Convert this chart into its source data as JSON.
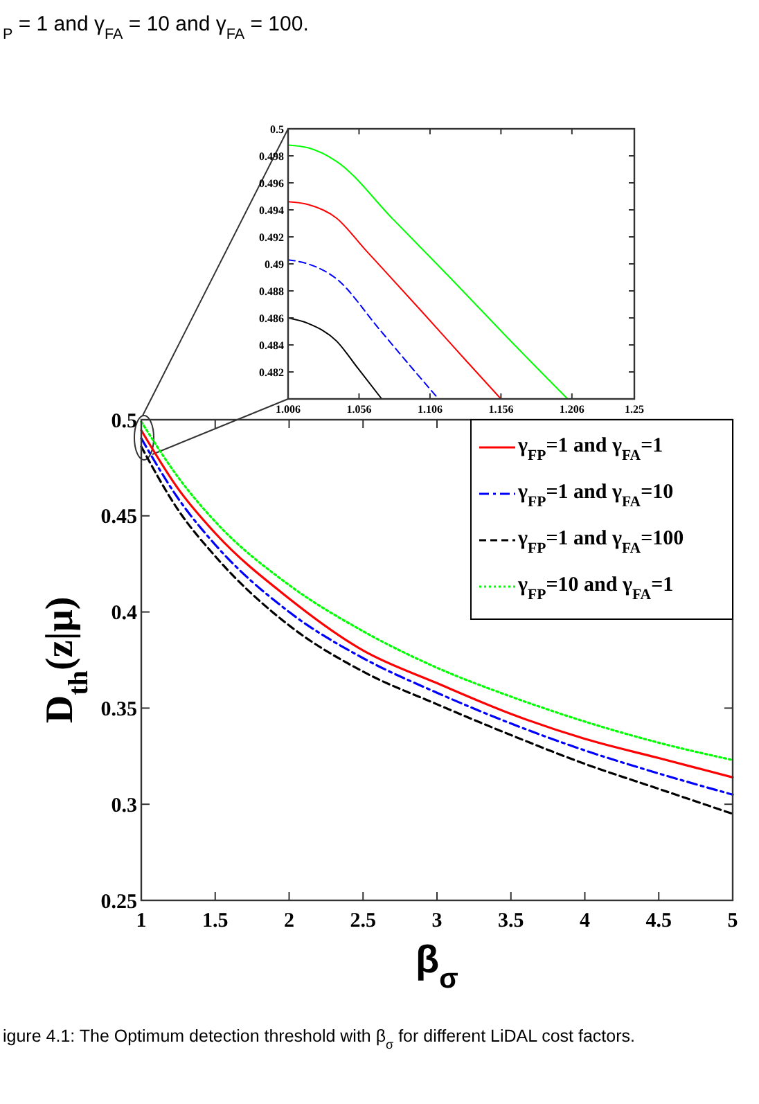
{
  "chart_data": [
    {
      "type": "line",
      "xlim": [
        1.006,
        1.25
      ],
      "xticks": [
        1.006,
        1.056,
        1.106,
        1.156,
        1.206,
        1.25
      ],
      "ylim": [
        0.48,
        0.5
      ],
      "yticks": [
        0.482,
        0.484,
        0.486,
        0.488,
        0.49,
        0.492,
        0.494,
        0.496,
        0.498,
        0.5
      ],
      "grid": false,
      "marker": "none",
      "series": [
        {
          "color": "#00ff00",
          "line_style": "solid",
          "x": [
            1.006,
            1.02,
            1.04,
            1.08,
            1.12,
            1.16,
            1.203
          ],
          "values": [
            0.4988,
            0.4986,
            0.4976,
            0.4933,
            0.489,
            0.4846,
            0.48
          ]
        },
        {
          "color": "#ff0000",
          "line_style": "solid",
          "x": [
            1.006,
            1.02,
            1.04,
            1.06,
            1.1,
            1.13,
            1.156
          ],
          "values": [
            0.4946,
            0.4944,
            0.4934,
            0.4911,
            0.4865,
            0.483,
            0.48
          ]
        },
        {
          "color": "#0000ff",
          "line_style": "dashed",
          "x": [
            1.006,
            1.02,
            1.04,
            1.07,
            1.09,
            1.112
          ],
          "values": [
            0.4903,
            0.49,
            0.4889,
            0.4852,
            0.4827,
            0.48
          ]
        },
        {
          "color": "#000000",
          "line_style": "solid",
          "x": [
            1.006,
            1.02,
            1.04,
            1.055,
            1.072
          ],
          "values": [
            0.486,
            0.4856,
            0.4843,
            0.4823,
            0.48
          ]
        }
      ]
    },
    {
      "type": "line",
      "xlabel": "β$_{σ}$",
      "ylabel": "D$_{th}$(z|μ)",
      "xlim": [
        1,
        5
      ],
      "xticks": [
        1,
        1.5,
        2,
        2.5,
        3,
        3.5,
        4,
        4.5,
        5
      ],
      "ylim": [
        0.25,
        0.5
      ],
      "yticks": [
        0.25,
        0.3,
        0.35,
        0.4,
        0.45,
        0.5
      ],
      "grid": false,
      "marker": "none",
      "legend": "top right",
      "x": [
        1,
        1.25,
        1.5,
        2,
        2.5,
        3,
        3.5,
        4,
        4.5,
        5
      ],
      "series": [
        {
          "name": "γ$_{FP}$=1 and γ$_{FA}$=1",
          "color": "#ff0000",
          "line_style": "solid",
          "values": [
            0.4945,
            0.464,
            0.441,
            0.407,
            0.38,
            0.363,
            0.347,
            0.334,
            0.324,
            0.314
          ]
        },
        {
          "name": "γ$_{FP}$=1 and γ$_{FA}$=10",
          "color": "#0000ff",
          "line_style": "dashdot",
          "values": [
            0.4903,
            0.459,
            0.435,
            0.4,
            0.376,
            0.358,
            0.342,
            0.328,
            0.316,
            0.305
          ]
        },
        {
          "name": "γ$_{FP}$=1 and γ$_{FA}$=100",
          "color": "#000000",
          "line_style": "dashed",
          "values": [
            0.486,
            0.453,
            0.429,
            0.393,
            0.369,
            0.352,
            0.336,
            0.321,
            0.308,
            0.295
          ]
        },
        {
          "name": "γ$_{FP}$=10 and γ$_{FA}$=1",
          "color": "#00ff00",
          "line_style": "dotted",
          "values": [
            0.499,
            0.47,
            0.447,
            0.414,
            0.39,
            0.371,
            0.356,
            0.343,
            0.332,
            0.323
          ]
        }
      ],
      "annotations": [
        "$_{P}$ = 1 and γ$_{FA}$ = 10 and γ$_{FA}$ = 100.",
        "igure 4.1: The Optimum detection threshold with β$_{σ}$ for different LiDAL cost factors."
      ]
    }
  ]
}
